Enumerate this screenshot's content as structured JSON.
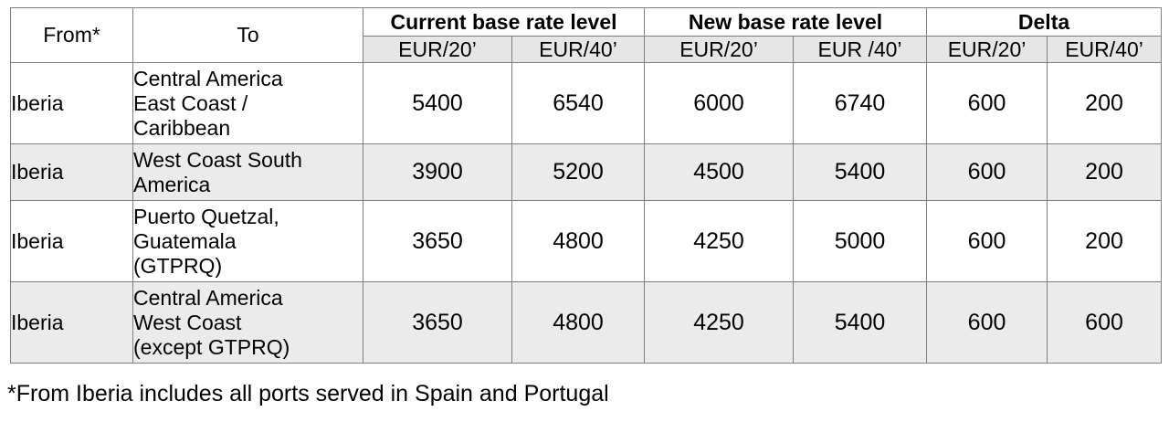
{
  "table": {
    "headers": {
      "from": "From*",
      "to": "To",
      "groups": [
        "Current base rate level",
        "New base rate level",
        "Delta"
      ],
      "units": [
        "EUR/20’",
        "EUR/40’",
        "EUR/20’",
        "EUR /40’",
        "EUR/20’",
        "EUR/40’"
      ]
    },
    "rows": [
      {
        "from": "Iberia",
        "to_lines": [
          "Central America",
          "East Coast /",
          "Caribbean"
        ],
        "values": [
          "5400",
          "6540",
          "6000",
          "6740",
          "600",
          "200"
        ]
      },
      {
        "from": "Iberia",
        "to_lines": [
          "West Coast South",
          "America"
        ],
        "values": [
          "3900",
          "5200",
          "4500",
          "5400",
          "600",
          "200"
        ]
      },
      {
        "from": "Iberia",
        "to_lines": [
          "Puerto Quetzal,",
          "Guatemala",
          "(GTPRQ)"
        ],
        "values": [
          "3650",
          "4800",
          "4250",
          "5000",
          "600",
          "200"
        ]
      },
      {
        "from": "Iberia",
        "to_lines": [
          "Central America",
          "West Coast",
          "(except GTPRQ)"
        ],
        "values": [
          "3650",
          "4800",
          "4250",
          "5400",
          "600",
          "600"
        ]
      }
    ]
  },
  "footnote": "*From Iberia includes all ports served in Spain and Portugal",
  "colors": {
    "border": "#7f7f7f",
    "header_shade": "#e6e6e6",
    "row_shade": "#ebebeb"
  }
}
